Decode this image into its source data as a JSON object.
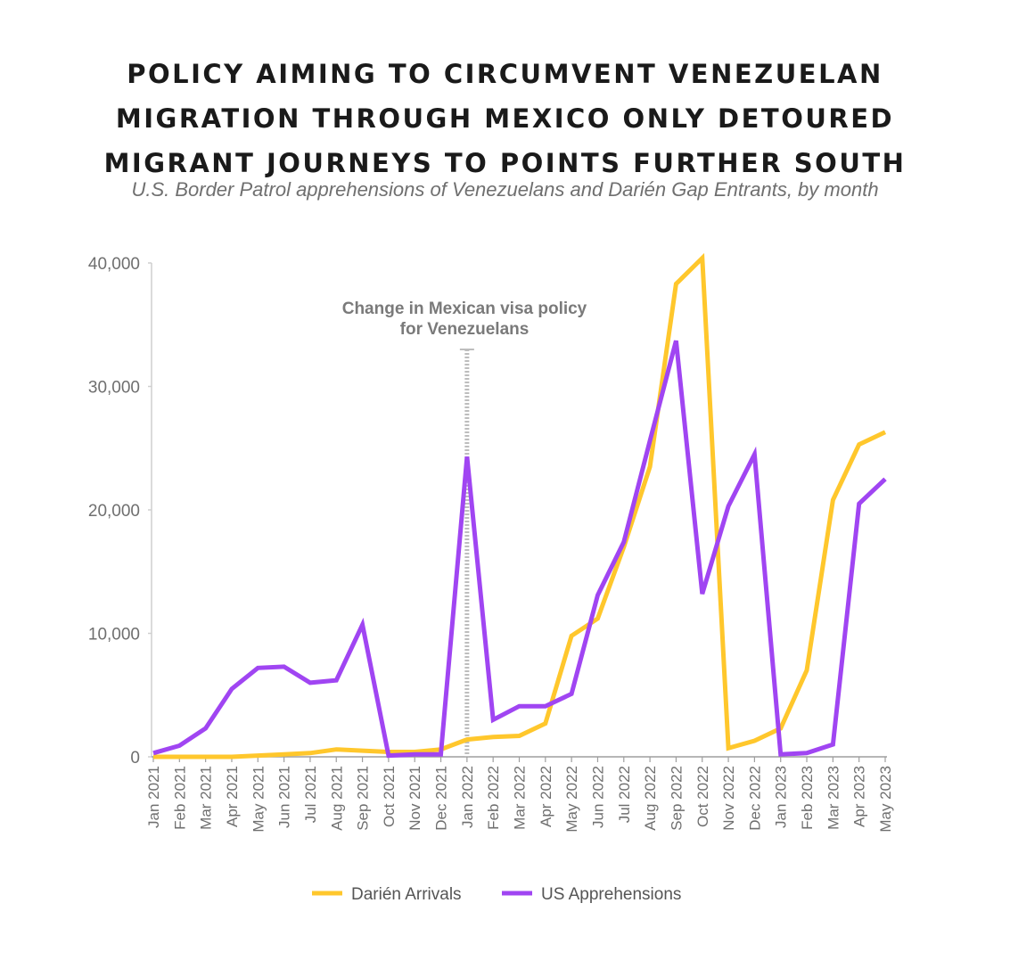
{
  "chart_data": {
    "type": "line",
    "title_lines": [
      "POLICY AIMING TO CIRCUMVENT VENEZUELAN",
      "MIGRATION THROUGH MEXICO ONLY DETOURED",
      "MIGRANT JOURNEYS TO POINTS FURTHER SOUTH"
    ],
    "subtitle": "U.S. Border Patrol apprehensions of Venezuelans and Darién Gap Entrants, by month",
    "xlabel": "",
    "ylabel": "",
    "ylim": [
      0,
      40000
    ],
    "yticks": [
      0,
      10000,
      20000,
      30000,
      40000
    ],
    "ytick_labels": [
      "0",
      "10,000",
      "20,000",
      "30,000",
      "40,000"
    ],
    "categories": [
      "Jan 2021",
      "Feb 2021",
      "Mar 2021",
      "Apr 2021",
      "May 2021",
      "Jun 2021",
      "Jul 2021",
      "Aug 2021",
      "Sep 2021",
      "Oct 2021",
      "Nov 2021",
      "Dec 2021",
      "Jan 2022",
      "Feb 2022",
      "Mar 2022",
      "Apr 2022",
      "May 2022",
      "Jun 2022",
      "Jul 2022",
      "Aug 2022",
      "Sep 2022",
      "Oct 2022",
      "Nov 2022",
      "Dec 2022",
      "Jan 2023",
      "Feb 2023",
      "Mar 2023",
      "Apr 2023",
      "May 2023"
    ],
    "series": [
      {
        "name": "Darién Arrivals",
        "color": "#FFC72C",
        "values": [
          0,
          0,
          0,
          0,
          100,
          200,
          300,
          600,
          500,
          400,
          400,
          600,
          1400,
          1600,
          1700,
          2700,
          9800,
          11200,
          17000,
          23500,
          38300,
          40400,
          700,
          1300,
          2300,
          7000,
          20800,
          25300,
          26300
        ]
      },
      {
        "name": "US Apprehensions",
        "color": "#A045F2",
        "values": [
          300,
          900,
          2300,
          5500,
          7200,
          7300,
          6000,
          6200,
          10700,
          100,
          200,
          200,
          24300,
          3000,
          4100,
          4100,
          5100,
          13100,
          17400,
          25600,
          33700,
          13200,
          20300,
          24500,
          200,
          300,
          1000,
          20500,
          22500
        ]
      }
    ],
    "annotation": {
      "lines": [
        "Change in Mexican visa policy",
        "for Venezuelans"
      ],
      "x_category": "Jan 2022",
      "y_top": 33000,
      "color": "#BDBDBD"
    },
    "grid": false,
    "legend_position": "bottom-center"
  }
}
